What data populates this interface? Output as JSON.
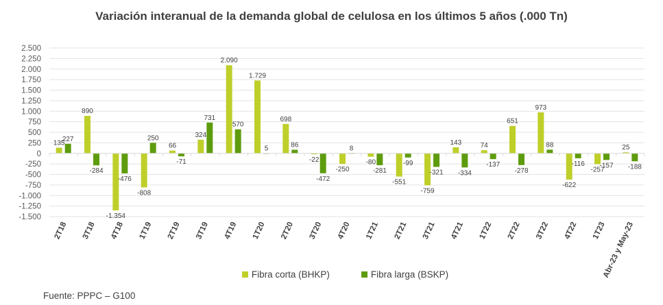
{
  "chart_data": {
    "type": "bar",
    "title": "Variación interanual de la demanda global de celulosa en los últimos 5 años (.000 Tn)",
    "xlabel": "",
    "ylabel": "",
    "ylim": [
      -1500,
      2500
    ],
    "yticks": [
      2500,
      2250,
      2000,
      1750,
      1500,
      1250,
      1000,
      750,
      500,
      250,
      0,
      -250,
      -500,
      -750,
      -1000,
      -1250,
      -1500
    ],
    "ytick_labels": [
      "2.500",
      "2.250",
      "2.000",
      "1.750",
      "1.500",
      "1.250",
      "1.000",
      "750",
      "500",
      "250",
      "0",
      "-250",
      "-500",
      "-750",
      "-1.000",
      "-1.250",
      "-1.500"
    ],
    "grid": true,
    "legend_position": "bottom",
    "categories": [
      "2T18",
      "3T18",
      "4T18",
      "1T19",
      "2T19",
      "3T19",
      "4T19",
      "1T20",
      "2T20",
      "3T20",
      "4T20",
      "1T21",
      "2T21",
      "3T21",
      "4T21",
      "1T22",
      "2T22",
      "3T22",
      "4T22",
      "1T23",
      "Abr-23 y May-23"
    ],
    "series": [
      {
        "name": "Fibra corta (BHKP)",
        "color": "#bfcf2a",
        "values": [
          135,
          890,
          -1354,
          -808,
          66,
          324,
          2090,
          1729,
          698,
          -22,
          -250,
          -80,
          -551,
          -759,
          143,
          74,
          651,
          973,
          -622,
          -257,
          25
        ],
        "labels": [
          "135",
          "890",
          "-1.354",
          "-808",
          "66",
          "324",
          "2.090",
          "1.729",
          "698",
          "-22",
          "-250",
          "-80",
          "-551",
          "-759",
          "143",
          "74",
          "651",
          "973",
          "-622",
          "-257",
          "25"
        ]
      },
      {
        "name": "Fibra larga (BSKP)",
        "color": "#5e9c0e",
        "values": [
          227,
          -284,
          -476,
          250,
          -71,
          731,
          570,
          5,
          86,
          -472,
          8,
          -281,
          -99,
          -321,
          -334,
          -137,
          -278,
          88,
          -116,
          -157,
          -188
        ],
        "labels": [
          "227",
          "-284",
          "-476",
          "250",
          "-71",
          "731",
          "570",
          "5",
          "86",
          "-472",
          "8",
          "-281",
          "-99",
          "-321",
          "-334",
          "-137",
          "-278",
          "88",
          "-116",
          "-157",
          "-188"
        ]
      }
    ]
  },
  "footer": {
    "source": "Fuente: PPPC – G100"
  }
}
